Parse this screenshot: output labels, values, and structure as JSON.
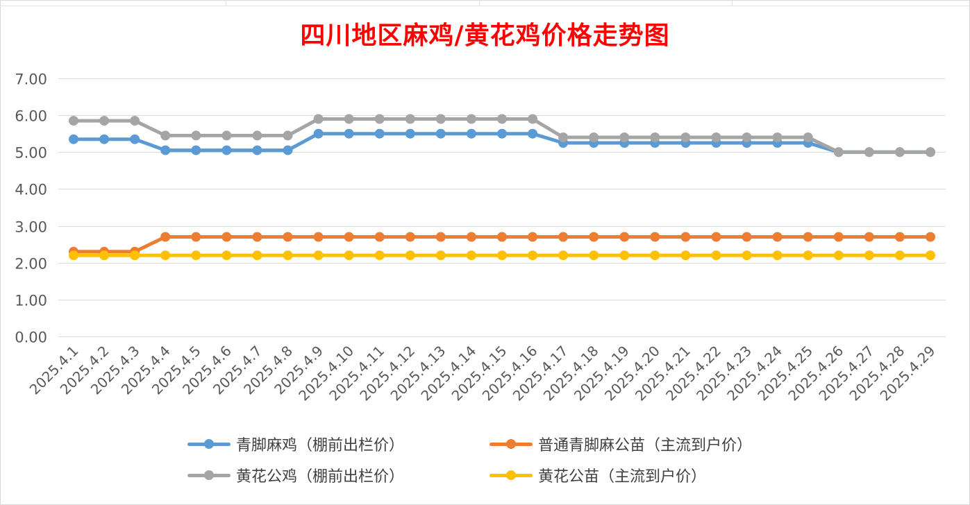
{
  "chart_data": {
    "type": "line",
    "title": "四川地区麻鸡/黄花鸡价格走势图",
    "xlabel": "",
    "ylabel": "",
    "ylim": [
      0,
      7
    ],
    "yticks": [
      "0.00",
      "1.00",
      "2.00",
      "3.00",
      "4.00",
      "5.00",
      "6.00",
      "7.00"
    ],
    "grid": true,
    "legend_position": "bottom",
    "categories": [
      "2025.4.1",
      "2025.4.2",
      "2025.4.3",
      "2025.4.4",
      "2025.4.5",
      "2025.4.6",
      "2025.4.7",
      "2025.4.8",
      "2025.4.9",
      "2025.4.10",
      "2025.4.11",
      "2025.4.12",
      "2025.4.13",
      "2025.4.14",
      "2025.4.15",
      "2025.4.16",
      "2025.4.17",
      "2025.4.18",
      "2025.4.19",
      "2025.4.20",
      "2025.4.21",
      "2025.4.22",
      "2025.4.23",
      "2025.4.24",
      "2025.4.25",
      "2025.4.26",
      "2025.4.27",
      "2025.4.28",
      "2025.4.29"
    ],
    "series": [
      {
        "name": "青脚麻鸡（棚前出栏价）",
        "color": "#5b9bd5",
        "values": [
          5.35,
          5.35,
          5.35,
          5.05,
          5.05,
          5.05,
          5.05,
          5.05,
          5.5,
          5.5,
          5.5,
          5.5,
          5.5,
          5.5,
          5.5,
          5.5,
          5.25,
          5.25,
          5.25,
          5.25,
          5.25,
          5.25,
          5.25,
          5.25,
          5.25,
          5.0,
          5.0,
          5.0,
          5.0
        ]
      },
      {
        "name": "普通青脚麻公苗（主流到户价）",
        "color": "#ed7d31",
        "values": [
          2.3,
          2.3,
          2.3,
          2.7,
          2.7,
          2.7,
          2.7,
          2.7,
          2.7,
          2.7,
          2.7,
          2.7,
          2.7,
          2.7,
          2.7,
          2.7,
          2.7,
          2.7,
          2.7,
          2.7,
          2.7,
          2.7,
          2.7,
          2.7,
          2.7,
          2.7,
          2.7,
          2.7,
          2.7
        ]
      },
      {
        "name": "黄花公鸡（棚前出栏价）",
        "color": "#a5a5a5",
        "values": [
          5.85,
          5.85,
          5.85,
          5.45,
          5.45,
          5.45,
          5.45,
          5.45,
          5.9,
          5.9,
          5.9,
          5.9,
          5.9,
          5.9,
          5.9,
          5.9,
          5.4,
          5.4,
          5.4,
          5.4,
          5.4,
          5.4,
          5.4,
          5.4,
          5.4,
          5.0,
          5.0,
          5.0,
          5.0
        ]
      },
      {
        "name": "黄花公苗（主流到户价）",
        "color": "#ffc000",
        "values": [
          2.2,
          2.2,
          2.2,
          2.2,
          2.2,
          2.2,
          2.2,
          2.2,
          2.2,
          2.2,
          2.2,
          2.2,
          2.2,
          2.2,
          2.2,
          2.2,
          2.2,
          2.2,
          2.2,
          2.2,
          2.2,
          2.2,
          2.2,
          2.2,
          2.2,
          2.2,
          2.2,
          2.2,
          2.2
        ]
      }
    ],
    "draw_order": [
      1,
      3,
      0,
      2
    ]
  }
}
